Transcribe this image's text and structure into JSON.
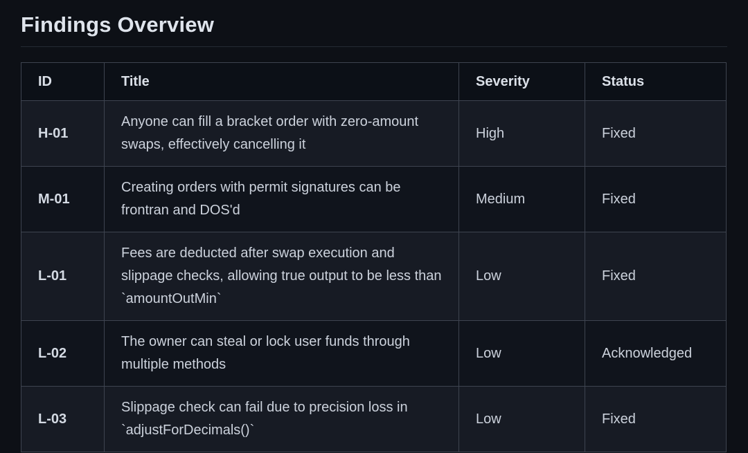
{
  "page": {
    "title": "Findings Overview"
  },
  "colors": {
    "page_background": "#0d1016",
    "row_odd_background": "#171b24",
    "row_even_background": "#10141c",
    "header_background": "#0c1017",
    "grid_border": "#3e4450",
    "title_text": "#dfe4ec",
    "cell_text": "#ccd2dc"
  },
  "table": {
    "columns": [
      {
        "key": "id",
        "label": "ID"
      },
      {
        "key": "title",
        "label": "Title"
      },
      {
        "key": "severity",
        "label": "Severity"
      },
      {
        "key": "status",
        "label": "Status"
      }
    ],
    "rows": [
      {
        "id": "H-01",
        "title": "Anyone can fill a bracket order with zero-amount swaps, effectively cancelling it",
        "severity": "High",
        "status": "Fixed"
      },
      {
        "id": "M-01",
        "title": "Creating orders with permit signatures can be frontran and DOS'd",
        "severity": "Medium",
        "status": "Fixed"
      },
      {
        "id": "L-01",
        "title": "Fees are deducted after swap execution and slippage checks, allowing true output to be less than `amountOutMin`",
        "severity": "Low",
        "status": "Fixed"
      },
      {
        "id": "L-02",
        "title": "The owner can steal or lock user funds through multiple methods",
        "severity": "Low",
        "status": "Acknowledged"
      },
      {
        "id": "L-03",
        "title": "Slippage check can fail due to precision loss in `adjustForDecimals()`",
        "severity": "Low",
        "status": "Fixed"
      }
    ]
  }
}
